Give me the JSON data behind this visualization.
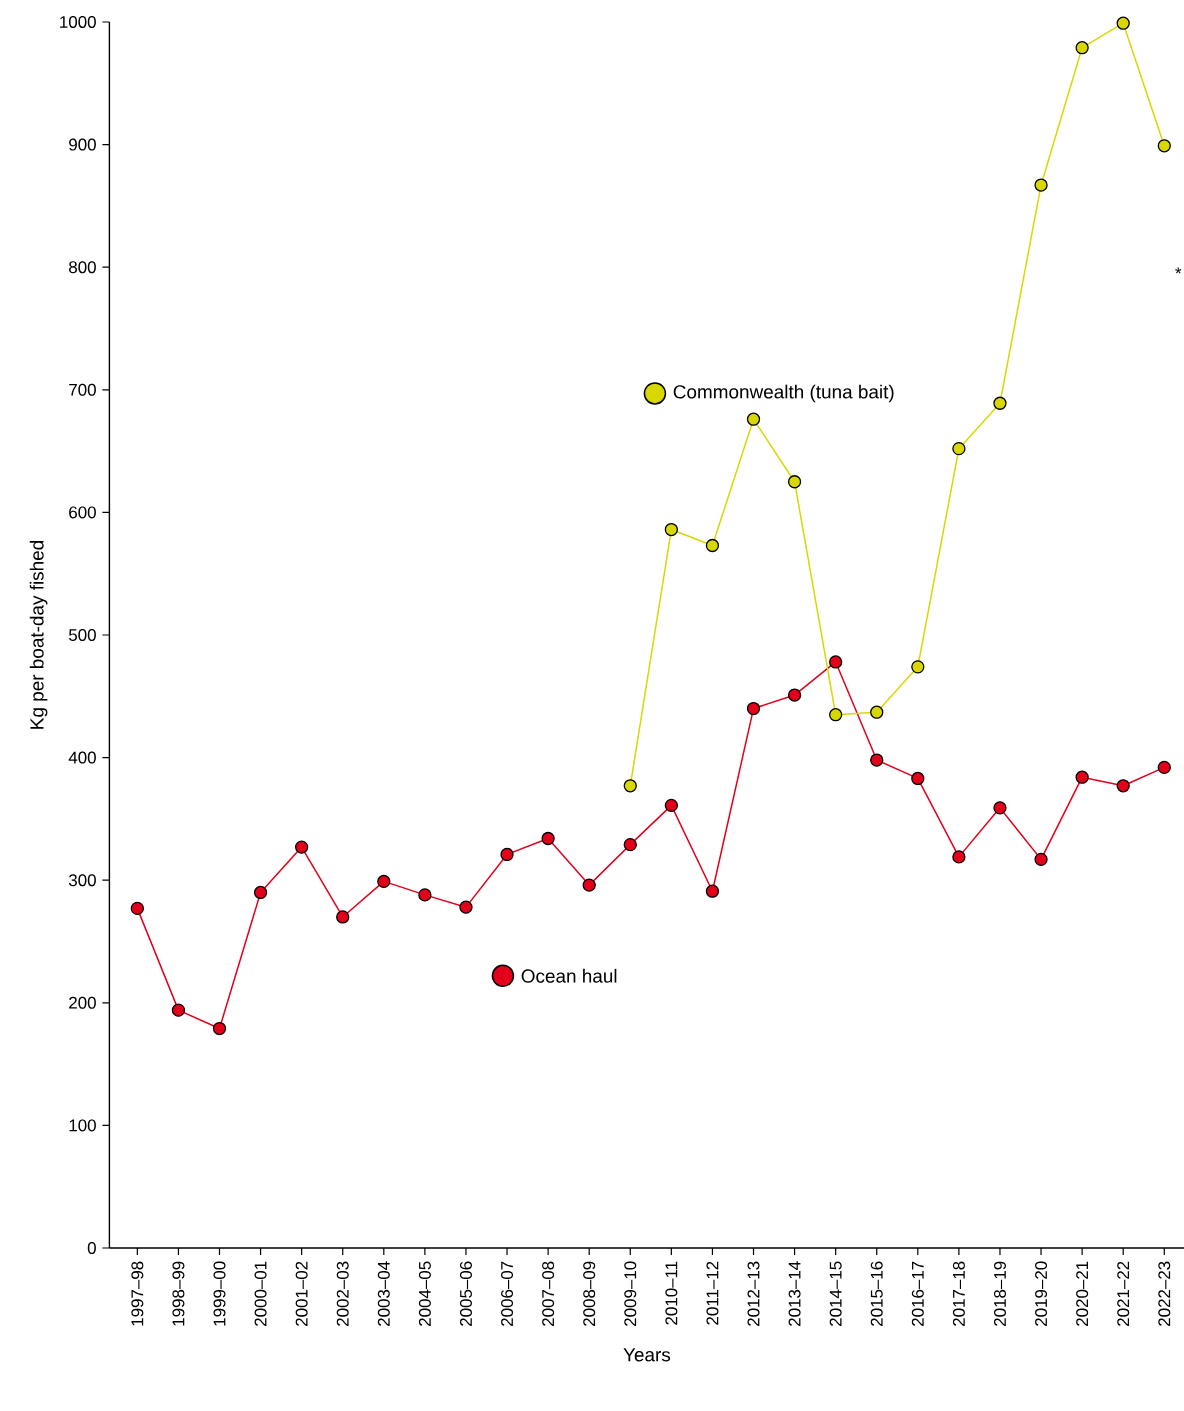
{
  "chart_data": {
    "type": "line",
    "xlabel": "Years",
    "ylabel": "Kg per boat-day fished",
    "categories": [
      "1997–98",
      "1998–99",
      "1999–00",
      "2000–01",
      "2001–02",
      "2002–03",
      "2003–04",
      "2004–05",
      "2005–06",
      "2006–07",
      "2007–08",
      "2008–09",
      "2009–10",
      "2010–11",
      "2011–12",
      "2012–13",
      "2013–14",
      "2014–15",
      "2015–16",
      "2016–17",
      "2017–18",
      "2018–19",
      "2019–20",
      "2020–21",
      "2021–22",
      "2022–23"
    ],
    "series": [
      {
        "name": "Ocean haul",
        "color": "#e2001a",
        "values": [
          277,
          194,
          179,
          290,
          327,
          270,
          299,
          288,
          278,
          321,
          334,
          296,
          329,
          361,
          291,
          440,
          451,
          478,
          398,
          383,
          319,
          359,
          317,
          384,
          377,
          392
        ]
      },
      {
        "name": "Commonwealth (tuna bait)",
        "color": "#d8d800",
        "values": [
          null,
          null,
          null,
          null,
          null,
          null,
          null,
          null,
          null,
          null,
          null,
          null,
          377,
          586,
          573,
          676,
          625,
          435,
          437,
          474,
          652,
          689,
          867,
          979,
          999,
          899
        ]
      }
    ],
    "ylim": [
      0,
      1000
    ],
    "yticks": [
      0,
      100,
      200,
      300,
      400,
      500,
      600,
      700,
      800,
      900,
      1000
    ],
    "legend": "center",
    "marker": "circle",
    "line_style": "solid",
    "annotations": [
      "*"
    ]
  }
}
